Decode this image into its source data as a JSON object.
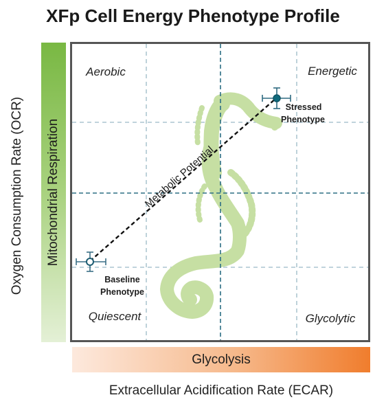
{
  "title": "XFp Cell Energy Phenotype Profile",
  "y_axis_label": "Oxygen Consumption Rate (OCR)",
  "x_axis_label": "Extracellular Acidification Rate (ECAR)",
  "vertical_bar_label": "Mitochondrial Respiration",
  "horizontal_bar_label": "Glycolysis",
  "quadrants": {
    "top_left": "Aerobic",
    "top_right": "Energetic",
    "bottom_left": "Quiescent",
    "bottom_right": "Glycolytic"
  },
  "points": {
    "baseline": {
      "line1": "Baseline",
      "line2": "Phenotype"
    },
    "stressed": {
      "line1": "Stressed",
      "line2": "Phenotype"
    }
  },
  "connector_label": "Metabolic Potential",
  "colors": {
    "green": "#79b843",
    "orange": "#f07d2d",
    "seahorse": "#c6dfa3",
    "marker": "#0e6a7c",
    "grid_dark": "#2b6e84",
    "grid_light": "#9ab9c6",
    "frame": "#555555"
  },
  "icons": {
    "mascot": "seahorse-icon"
  }
}
